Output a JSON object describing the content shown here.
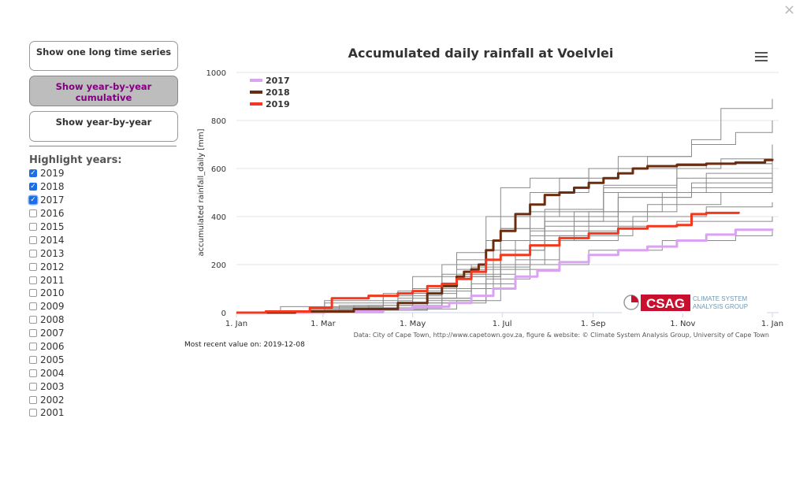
{
  "close_label": "×",
  "buttons": {
    "long_series": "Show one long time series",
    "cumulative": "Show year-by-year cumulative",
    "year_by_year": "Show year-by-year"
  },
  "highlight_title": "Highlight years:",
  "years": [
    {
      "label": "2019",
      "checked": true
    },
    {
      "label": "2018",
      "checked": true
    },
    {
      "label": "2017",
      "checked": true
    },
    {
      "label": "2016",
      "checked": false
    },
    {
      "label": "2015",
      "checked": false
    },
    {
      "label": "2014",
      "checked": false
    },
    {
      "label": "2013",
      "checked": false
    },
    {
      "label": "2012",
      "checked": false
    },
    {
      "label": "2011",
      "checked": false
    },
    {
      "label": "2010",
      "checked": false
    },
    {
      "label": "2009",
      "checked": false
    },
    {
      "label": "2008",
      "checked": false
    },
    {
      "label": "2007",
      "checked": false
    },
    {
      "label": "2006",
      "checked": false
    },
    {
      "label": "2005",
      "checked": false
    },
    {
      "label": "2004",
      "checked": false
    },
    {
      "label": "2003",
      "checked": false
    },
    {
      "label": "2002",
      "checked": false
    },
    {
      "label": "2001",
      "checked": false
    }
  ],
  "recent_note": "Most recent value on: 2019-12-08",
  "colors": {
    "y2017": "#d9a3f2",
    "y2018": "#6b2d10",
    "y2019": "#f2391f",
    "grey": "#8a8a8a",
    "logo_red": "#c8102e"
  },
  "chart_data": {
    "type": "line",
    "title": "Accumulated daily rainfall at Voelvlei",
    "xlabel": "",
    "ylabel": "accumulated rainfall_daily [mm]",
    "ylim": [
      0,
      1000
    ],
    "yticks": [
      "0",
      "200",
      "400",
      "600",
      "800",
      "1000"
    ],
    "xlim": [
      0,
      365
    ],
    "xticks": [
      {
        "label": "1. Jan",
        "day": 0
      },
      {
        "label": "1. Mar",
        "day": 59
      },
      {
        "label": "1. May",
        "day": 120
      },
      {
        "label": "1. Jul",
        "day": 181
      },
      {
        "label": "1. Sep",
        "day": 243
      },
      {
        "label": "1. Nov",
        "day": 304
      },
      {
        "label": "1. Jan",
        "day": 365
      }
    ],
    "credit": "Data: City of Cape Town, http://www.capetown.gov.za, figure & website: © Climate System Analysis Group, University of Cape Town",
    "logo": {
      "mark": "CSAG",
      "line1": "CLIMATE SYSTEM",
      "line2": "ANALYSIS GROUP"
    },
    "legend_position": "top-left",
    "highlighted": [
      {
        "name": "2017",
        "color": "#d9a3f2",
        "x": [
          0,
          60,
          100,
          120,
          145,
          160,
          175,
          190,
          205,
          220,
          240,
          260,
          280,
          300,
          320,
          340,
          365
        ],
        "y": [
          0,
          5,
          15,
          25,
          40,
          70,
          100,
          150,
          175,
          210,
          240,
          260,
          275,
          300,
          325,
          345,
          350
        ]
      },
      {
        "name": "2018",
        "color": "#6b2d10",
        "x": [
          0,
          40,
          80,
          110,
          130,
          140,
          150,
          155,
          160,
          165,
          170,
          175,
          180,
          190,
          200,
          210,
          220,
          230,
          240,
          250,
          260,
          270,
          280,
          300,
          320,
          340,
          360,
          365
        ],
        "y": [
          0,
          5,
          15,
          40,
          80,
          110,
          150,
          170,
          180,
          200,
          260,
          300,
          340,
          410,
          450,
          490,
          500,
          520,
          540,
          560,
          580,
          600,
          610,
          615,
          620,
          625,
          635,
          640
        ]
      },
      {
        "name": "2019",
        "color": "#f2391f",
        "x": [
          0,
          20,
          50,
          65,
          90,
          110,
          120,
          130,
          140,
          150,
          160,
          170,
          180,
          200,
          220,
          240,
          260,
          280,
          300,
          310,
          320,
          342
        ],
        "y": [
          0,
          5,
          20,
          60,
          70,
          80,
          90,
          110,
          120,
          140,
          170,
          220,
          240,
          280,
          310,
          330,
          350,
          360,
          365,
          410,
          415,
          420
        ]
      }
    ],
    "background_series": [
      {
        "name": "other",
        "x": [
          0,
          60,
          120,
          150,
          180,
          200,
          240,
          280,
          310,
          340,
          365
        ],
        "y": [
          0,
          50,
          100,
          220,
          350,
          500,
          600,
          650,
          700,
          750,
          800
        ]
      },
      {
        "name": "other",
        "x": [
          0,
          60,
          100,
          140,
          170,
          200,
          250,
          300,
          330,
          365
        ],
        "y": [
          0,
          20,
          70,
          160,
          300,
          420,
          530,
          600,
          640,
          660
        ]
      },
      {
        "name": "other",
        "x": [
          0,
          50,
          110,
          150,
          180,
          210,
          260,
          310,
          365
        ],
        "y": [
          0,
          15,
          60,
          150,
          260,
          360,
          480,
          540,
          580
        ]
      },
      {
        "name": "other",
        "x": [
          0,
          60,
          120,
          160,
          190,
          220,
          270,
          320,
          365
        ],
        "y": [
          0,
          10,
          40,
          120,
          220,
          320,
          400,
          440,
          460
        ]
      },
      {
        "name": "other",
        "x": [
          0,
          80,
          130,
          170,
          200,
          240,
          290,
          340,
          365
        ],
        "y": [
          0,
          10,
          40,
          140,
          200,
          260,
          300,
          320,
          340
        ]
      },
      {
        "name": "other",
        "x": [
          0,
          70,
          120,
          150,
          170,
          180,
          200,
          240,
          320,
          365
        ],
        "y": [
          0,
          30,
          100,
          250,
          400,
          520,
          560,
          600,
          620,
          640
        ]
      },
      {
        "name": "other",
        "x": [
          0,
          90,
          120,
          150,
          180,
          220,
          260,
          310,
          330,
          365
        ],
        "y": [
          0,
          30,
          80,
          180,
          400,
          560,
          650,
          720,
          850,
          890
        ]
      },
      {
        "name": "other",
        "x": [
          0,
          60,
          110,
          160,
          200,
          240,
          300,
          365
        ],
        "y": [
          0,
          20,
          90,
          200,
          320,
          420,
          500,
          540
        ]
      },
      {
        "name": "other",
        "x": [
          0,
          30,
          100,
          140,
          180,
          210,
          250,
          300,
          365
        ],
        "y": [
          0,
          25,
          80,
          200,
          350,
          430,
          500,
          560,
          600
        ]
      },
      {
        "name": "other",
        "x": [
          0,
          90,
          140,
          160,
          190,
          230,
          280,
          330,
          365
        ],
        "y": [
          0,
          20,
          60,
          160,
          300,
          380,
          450,
          500,
          520
        ]
      },
      {
        "name": "other",
        "x": [
          0,
          50,
          130,
          170,
          210,
          250,
          300,
          365
        ],
        "y": [
          0,
          10,
          50,
          200,
          380,
          520,
          620,
          700
        ]
      },
      {
        "name": "other",
        "x": [
          0,
          100,
          150,
          180,
          220,
          260,
          300,
          365
        ],
        "y": [
          0,
          15,
          50,
          180,
          300,
          360,
          380,
          400
        ]
      },
      {
        "name": "other",
        "x": [
          0,
          60,
          120,
          180,
          230,
          290,
          365
        ],
        "y": [
          0,
          40,
          150,
          300,
          420,
          500,
          560
        ]
      },
      {
        "name": "other",
        "x": [
          0,
          80,
          140,
          175,
          210,
          260,
          320,
          365
        ],
        "y": [
          0,
          30,
          100,
          260,
          400,
          500,
          580,
          620
        ]
      },
      {
        "name": "other",
        "x": [
          0,
          70,
          130,
          160,
          200,
          260,
          310,
          365
        ],
        "y": [
          0,
          10,
          60,
          190,
          340,
          480,
          520,
          580
        ]
      }
    ]
  }
}
